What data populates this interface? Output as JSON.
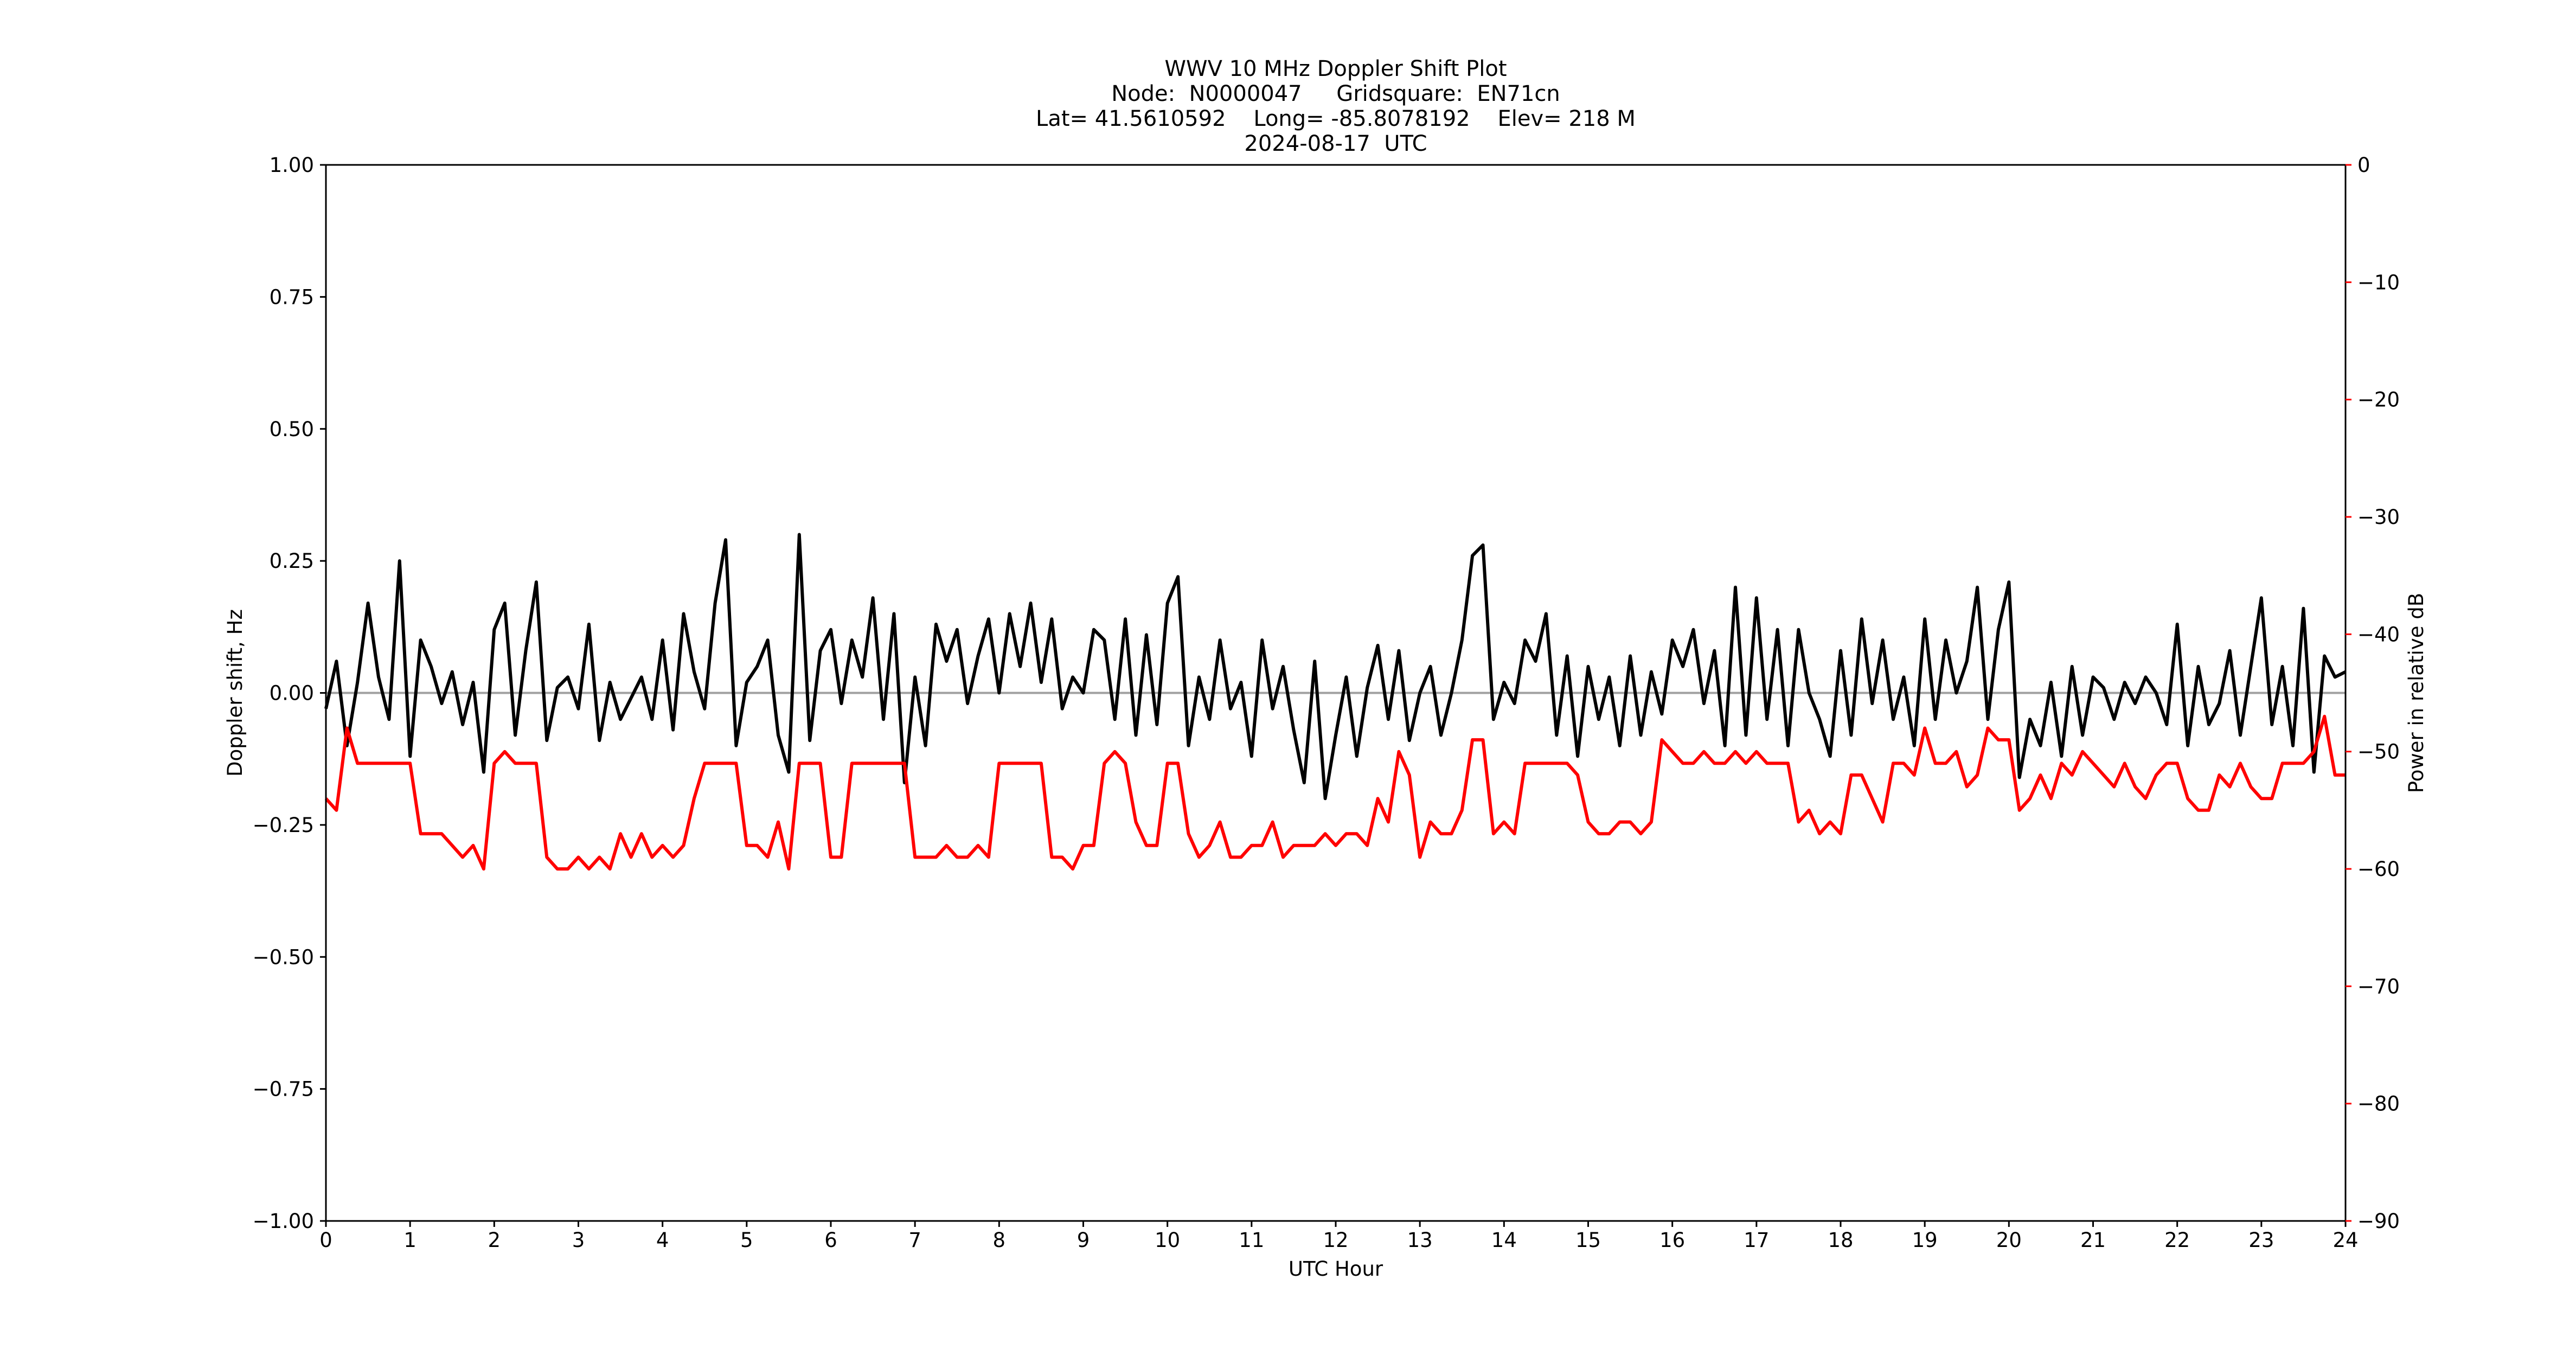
{
  "chart_data": {
    "type": "line",
    "title": [
      "WWV 10 MHz Doppler Shift Plot",
      "Node:  N0000047     Gridsquare:  EN71cn",
      "Lat= 41.5610592    Long= -85.8078192    Elev= 218 M",
      "2024-08-17  UTC"
    ],
    "xlabel": "UTC Hour",
    "ylabel": "Doppler shift, Hz",
    "y2label": "Power in relative dB",
    "xlim": [
      0,
      24
    ],
    "xticks": [
      0,
      1,
      2,
      3,
      4,
      5,
      6,
      7,
      8,
      9,
      10,
      11,
      12,
      13,
      14,
      15,
      16,
      17,
      18,
      19,
      20,
      21,
      22,
      23,
      24
    ],
    "ylim": [
      -1,
      1
    ],
    "yticks": [
      {
        "value": -1,
        "label": "−1.00"
      },
      {
        "value": -0.75,
        "label": "−0.75"
      },
      {
        "value": -0.5,
        "label": "−0.50"
      },
      {
        "value": -0.25,
        "label": "−0.25"
      },
      {
        "value": 0,
        "label": "0.00"
      },
      {
        "value": 0.25,
        "label": "0.25"
      },
      {
        "value": 0.5,
        "label": "0.50"
      },
      {
        "value": 0.75,
        "label": "0.75"
      },
      {
        "value": 1,
        "label": "1.00"
      }
    ],
    "y2lim": [
      -90,
      0
    ],
    "y2ticks": [
      {
        "value": -90,
        "label": "−90"
      },
      {
        "value": -80,
        "label": "−80"
      },
      {
        "value": -70,
        "label": "−70"
      },
      {
        "value": -60,
        "label": "−60"
      },
      {
        "value": -50,
        "label": "−50"
      },
      {
        "value": -40,
        "label": "−40"
      },
      {
        "value": -30,
        "label": "−30"
      },
      {
        "value": -20,
        "label": "−20"
      },
      {
        "value": -10,
        "label": "−10"
      },
      0
    ],
    "hline": 0,
    "hline_color": "#a0a0a0",
    "x": [
      0,
      0.125,
      0.25,
      0.375,
      0.5,
      0.625,
      0.75,
      0.875,
      1,
      1.125,
      1.25,
      1.375,
      1.5,
      1.625,
      1.75,
      1.875,
      2,
      2.125,
      2.25,
      2.375,
      2.5,
      2.625,
      2.75,
      2.875,
      3,
      3.125,
      3.25,
      3.375,
      3.5,
      3.625,
      3.75,
      3.875,
      4,
      4.125,
      4.25,
      4.375,
      4.5,
      4.625,
      4.75,
      4.875,
      5,
      5.125,
      5.25,
      5.375,
      5.5,
      5.625,
      5.75,
      5.875,
      6,
      6.125,
      6.25,
      6.375,
      6.5,
      6.625,
      6.75,
      6.875,
      7,
      7.125,
      7.25,
      7.375,
      7.5,
      7.625,
      7.75,
      7.875,
      8,
      8.125,
      8.25,
      8.375,
      8.5,
      8.625,
      8.75,
      8.875,
      9,
      9.125,
      9.25,
      9.375,
      9.5,
      9.625,
      9.75,
      9.875,
      10,
      10.125,
      10.25,
      10.375,
      10.5,
      10.625,
      10.75,
      10.875,
      11,
      11.125,
      11.25,
      11.375,
      11.5,
      11.625,
      11.75,
      11.875,
      12,
      12.125,
      12.25,
      12.375,
      12.5,
      12.625,
      12.75,
      12.875,
      13,
      13.125,
      13.25,
      13.375,
      13.5,
      13.625,
      13.75,
      13.875,
      14,
      14.125,
      14.25,
      14.375,
      14.5,
      14.625,
      14.75,
      14.875,
      15,
      15.125,
      15.25,
      15.375,
      15.5,
      15.625,
      15.75,
      15.875,
      16,
      16.125,
      16.25,
      16.375,
      16.5,
      16.625,
      16.75,
      16.875,
      17,
      17.125,
      17.25,
      17.375,
      17.5,
      17.625,
      17.75,
      17.875,
      18,
      18.125,
      18.25,
      18.375,
      18.5,
      18.625,
      18.75,
      18.875,
      19,
      19.125,
      19.25,
      19.375,
      19.5,
      19.625,
      19.75,
      19.875,
      20,
      20.125,
      20.25,
      20.375,
      20.5,
      20.625,
      20.75,
      20.875,
      21,
      21.125,
      21.25,
      21.375,
      21.5,
      21.625,
      21.75,
      21.875,
      22,
      22.125,
      22.25,
      22.375,
      22.5,
      22.625,
      22.75,
      22.875,
      23,
      23.125,
      23.25,
      23.375,
      23.5,
      23.625,
      23.75,
      23.875,
      24
    ],
    "series": [
      {
        "name": "Doppler shift",
        "color": "#000000",
        "values": [
          -0.03,
          0.06,
          -0.1,
          0.02,
          0.17,
          0.03,
          -0.05,
          0.25,
          -0.12,
          0.1,
          0.05,
          -0.02,
          0.04,
          -0.06,
          0.02,
          -0.15,
          0.12,
          0.17,
          -0.08,
          0.08,
          0.21,
          -0.09,
          0.01,
          0.03,
          -0.03,
          0.13,
          -0.09,
          0.02,
          -0.05,
          -0.01,
          0.03,
          -0.05,
          0.1,
          -0.07,
          0.15,
          0.04,
          -0.03,
          0.17,
          0.29,
          -0.1,
          0.02,
          0.05,
          0.1,
          -0.08,
          -0.15,
          0.3,
          -0.09,
          0.08,
          0.12,
          -0.02,
          0.1,
          0.03,
          0.18,
          -0.05,
          0.15,
          -0.17,
          0.03,
          -0.1,
          0.13,
          0.06,
          0.12,
          -0.02,
          0.07,
          0.14,
          0.0,
          0.15,
          0.05,
          0.17,
          0.02,
          0.14,
          -0.03,
          0.03,
          0.0,
          0.12,
          0.1,
          -0.05,
          0.14,
          -0.08,
          0.11,
          -0.06,
          0.17,
          0.22,
          -0.1,
          0.03,
          -0.05,
          0.1,
          -0.03,
          0.02,
          -0.12,
          0.1,
          -0.03,
          0.05,
          -0.07,
          -0.17,
          0.06,
          -0.2,
          -0.08,
          0.03,
          -0.12,
          0.01,
          0.09,
          -0.05,
          0.08,
          -0.09,
          0.0,
          0.05,
          -0.08,
          0.0,
          0.1,
          0.26,
          0.28,
          -0.05,
          0.02,
          -0.02,
          0.1,
          0.06,
          0.15,
          -0.08,
          0.07,
          -0.12,
          0.05,
          -0.05,
          0.03,
          -0.1,
          0.07,
          -0.08,
          0.04,
          -0.04,
          0.1,
          0.05,
          0.12,
          -0.02,
          0.08,
          -0.1,
          0.2,
          -0.08,
          0.18,
          -0.05,
          0.12,
          -0.1,
          0.12,
          0.0,
          -0.05,
          -0.12,
          0.08,
          -0.08,
          0.14,
          -0.02,
          0.1,
          -0.05,
          0.03,
          -0.1,
          0.14,
          -0.05,
          0.1,
          0.0,
          0.06,
          0.2,
          -0.05,
          0.12,
          0.21,
          -0.16,
          -0.05,
          -0.1,
          0.02,
          -0.12,
          0.05,
          -0.08,
          0.03,
          0.01,
          -0.05,
          0.02,
          -0.02,
          0.03,
          0.0,
          -0.06,
          0.13,
          -0.1,
          0.05,
          -0.06,
          -0.02,
          0.08,
          -0.08,
          0.05,
          0.18,
          -0.06,
          0.05,
          -0.1,
          0.16,
          -0.15,
          0.07,
          0.03,
          0.04
        ]
      },
      {
        "name": "Power",
        "color": "#ff0000",
        "axis": "y2",
        "values": [
          -54,
          -55,
          -48,
          -51,
          -51,
          -51,
          -51,
          -51,
          -51,
          -57,
          -57,
          -57,
          -58,
          -59,
          -58,
          -60,
          -51,
          -50,
          -51,
          -51,
          -51,
          -59,
          -60,
          -60,
          -59,
          -60,
          -59,
          -60,
          -57,
          -59,
          -57,
          -59,
          -58,
          -59,
          -58,
          -54,
          -51,
          -51,
          -51,
          -51,
          -58,
          -58,
          -59,
          -56,
          -60,
          -51,
          -51,
          -51,
          -59,
          -59,
          -51,
          -51,
          -51,
          -51,
          -51,
          -51,
          -59,
          -59,
          -59,
          -58,
          -59,
          -59,
          -58,
          -59,
          -51,
          -51,
          -51,
          -51,
          -51,
          -59,
          -59,
          -60,
          -58,
          -58,
          -51,
          -50,
          -51,
          -56,
          -58,
          -58,
          -51,
          -51,
          -57,
          -59,
          -58,
          -56,
          -59,
          -59,
          -58,
          -58,
          -56,
          -59,
          -58,
          -58,
          -58,
          -57,
          -58,
          -57,
          -57,
          -58,
          -54,
          -56,
          -50,
          -52,
          -59,
          -56,
          -57,
          -57,
          -55,
          -49,
          -49,
          -57,
          -56,
          -57,
          -51,
          -51,
          -51,
          -51,
          -51,
          -52,
          -56,
          -57,
          -57,
          -56,
          -56,
          -57,
          -56,
          -49,
          -50,
          -51,
          -51,
          -50,
          -51,
          -51,
          -50,
          -51,
          -50,
          -51,
          -51,
          -51,
          -56,
          -55,
          -57,
          -56,
          -57,
          -52,
          -52,
          -54,
          -56,
          -51,
          -51,
          -52,
          -48,
          -51,
          -51,
          -50,
          -53,
          -52,
          -48,
          -49,
          -49,
          -55,
          -54,
          -52,
          -54,
          -51,
          -52,
          -50,
          -51,
          -52,
          -53,
          -51,
          -53,
          -54,
          -52,
          -51,
          -51,
          -54,
          -55,
          -55,
          -52,
          -53,
          -51,
          -53,
          -54,
          -54,
          -51,
          -51,
          -51,
          -50,
          -47,
          -52,
          -52
        ]
      }
    ]
  }
}
